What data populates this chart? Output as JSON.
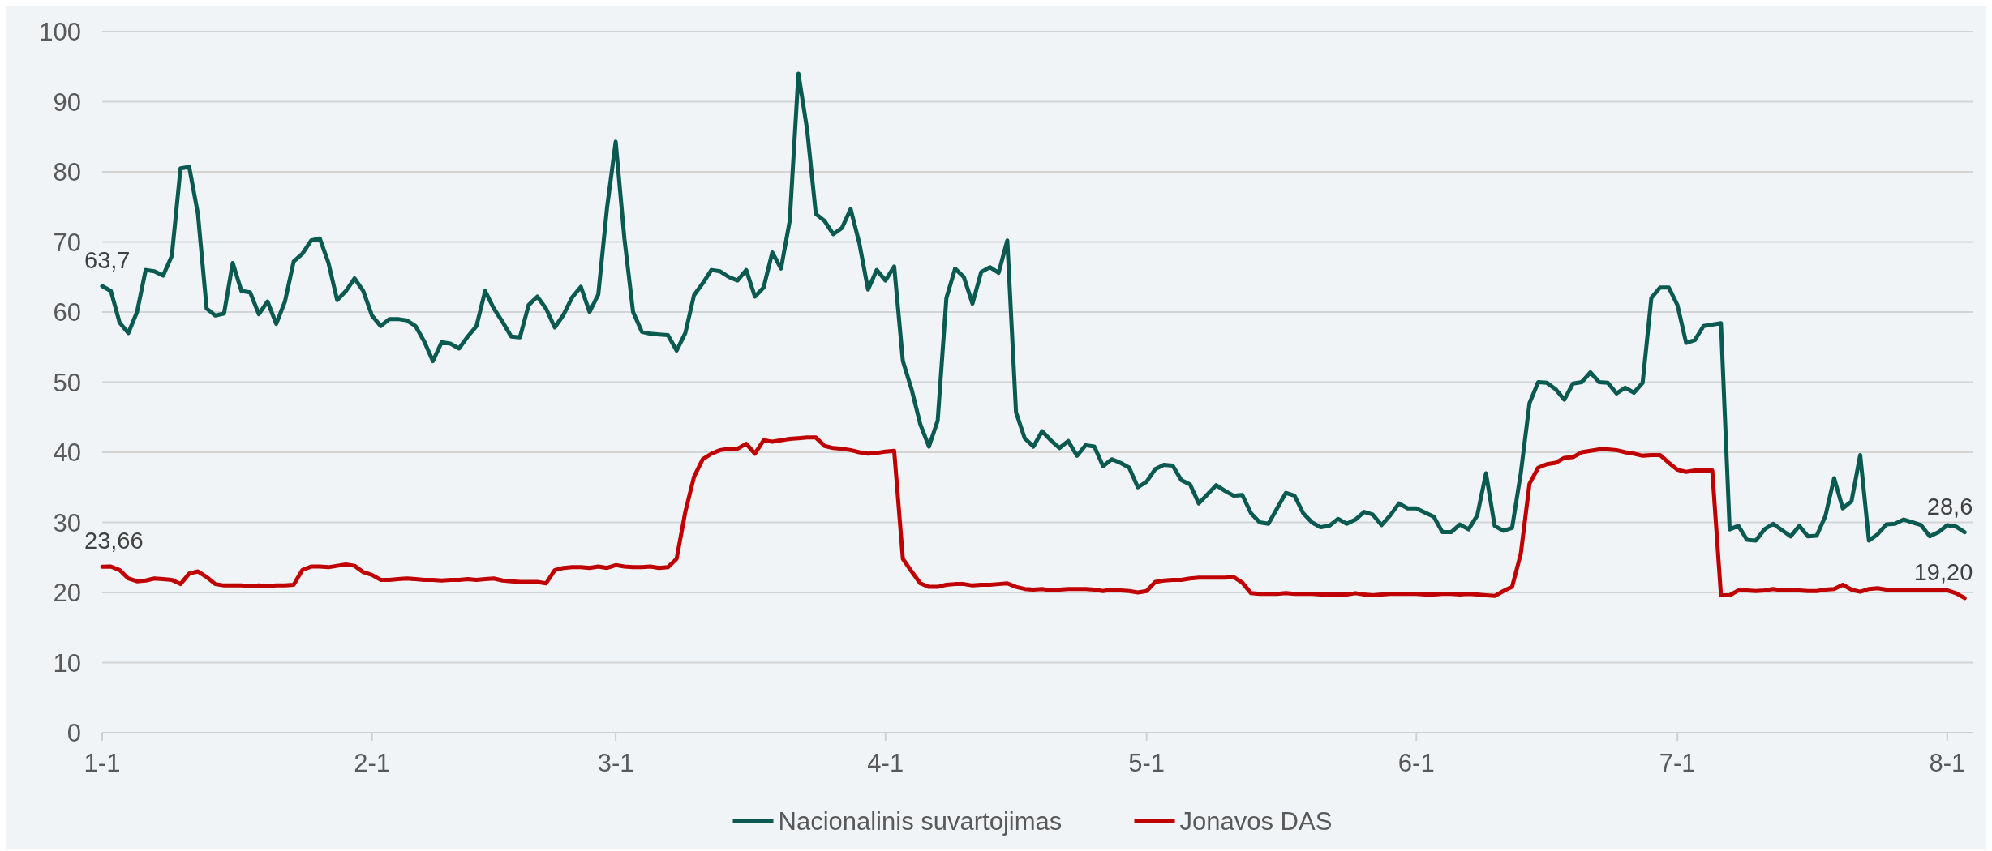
{
  "chart_data": {
    "type": "line",
    "x": [
      "--01-01",
      "--01-02",
      "--01-03",
      "--01-04",
      "--01-05",
      "--01-06",
      "--01-07",
      "--01-08",
      "--01-09",
      "--01-10",
      "--01-11",
      "--01-12",
      "--01-13",
      "--01-14",
      "--01-15",
      "--01-16",
      "--01-17",
      "--01-18",
      "--01-19",
      "--01-20",
      "--01-21",
      "--01-22",
      "--01-23",
      "--01-24",
      "--01-25",
      "--01-26",
      "--01-27",
      "--01-28",
      "--01-29",
      "--01-30",
      "--01-31",
      "--02-01",
      "--02-02",
      "--02-03",
      "--02-04",
      "--02-05",
      "--02-06",
      "--02-07",
      "--02-08",
      "--02-09",
      "--02-10",
      "--02-11",
      "--02-12",
      "--02-13",
      "--02-14",
      "--02-15",
      "--02-16",
      "--02-17",
      "--02-18",
      "--02-19",
      "--02-20",
      "--02-21",
      "--02-22",
      "--02-23",
      "--02-24",
      "--02-25",
      "--02-26",
      "--02-27",
      "--02-28",
      "--03-01",
      "--03-02",
      "--03-03",
      "--03-04",
      "--03-05",
      "--03-06",
      "--03-07",
      "--03-08",
      "--03-09",
      "--03-10",
      "--03-11",
      "--03-12",
      "--03-13",
      "--03-14",
      "--03-15",
      "--03-16",
      "--03-17",
      "--03-18",
      "--03-19",
      "--03-20",
      "--03-21",
      "--03-22",
      "--03-23",
      "--03-24",
      "--03-25",
      "--03-26",
      "--03-27",
      "--03-28",
      "--03-29",
      "--03-30",
      "--03-31",
      "--04-01",
      "--04-02",
      "--04-03",
      "--04-04",
      "--04-05",
      "--04-06",
      "--04-07",
      "--04-08",
      "--04-09",
      "--04-10",
      "--04-11",
      "--04-12",
      "--04-13",
      "--04-14",
      "--04-15",
      "--04-16",
      "--04-17",
      "--04-18",
      "--04-19",
      "--04-20",
      "--04-21",
      "--04-22",
      "--04-23",
      "--04-24",
      "--04-25",
      "--04-26",
      "--04-27",
      "--04-28",
      "--04-29",
      "--04-30",
      "--05-01",
      "--05-02",
      "--05-03",
      "--05-04",
      "--05-05",
      "--05-06",
      "--05-07",
      "--05-08",
      "--05-09",
      "--05-10",
      "--05-11",
      "--05-12",
      "--05-13",
      "--05-14",
      "--05-15",
      "--05-16",
      "--05-17",
      "--05-18",
      "--05-19",
      "--05-20",
      "--05-21",
      "--05-22",
      "--05-23",
      "--05-24",
      "--05-25",
      "--05-26",
      "--05-27",
      "--05-28",
      "--05-29",
      "--05-30",
      "--05-31",
      "--06-01",
      "--06-02",
      "--06-03",
      "--06-04",
      "--06-05",
      "--06-06",
      "--06-07",
      "--06-08",
      "--06-09",
      "--06-10",
      "--06-11",
      "--06-12",
      "--06-13",
      "--06-14",
      "--06-15",
      "--06-16",
      "--06-17",
      "--06-18",
      "--06-19",
      "--06-20",
      "--06-21",
      "--06-22",
      "--06-23",
      "--06-24",
      "--06-25",
      "--06-26",
      "--06-27",
      "--06-28",
      "--06-29",
      "--06-30",
      "--07-01",
      "--07-02",
      "--07-03",
      "--07-04",
      "--07-05",
      "--07-06",
      "--07-07",
      "--07-08",
      "--07-09",
      "--07-10",
      "--07-11",
      "--07-12",
      "--07-13",
      "--07-14",
      "--07-15",
      "--07-16",
      "--07-17",
      "--07-18",
      "--07-19",
      "--07-20",
      "--07-21",
      "--07-22",
      "--07-23",
      "--07-24",
      "--07-25",
      "--07-26",
      "--07-27",
      "--07-28",
      "--07-29",
      "--07-30",
      "--07-31",
      "--08-01",
      "--08-02",
      "--08-03"
    ],
    "series": [
      {
        "name": "Nacionalinis suvartojimas",
        "color": "#0b5a52",
        "values": [
          63.7,
          63,
          58.5,
          57,
          60,
          66,
          65.8,
          65.2,
          68,
          80.5,
          80.7,
          74,
          60.5,
          59.5,
          59.8,
          67,
          63,
          62.8,
          59.7,
          61.5,
          58.3,
          61.5,
          67.2,
          68.3,
          70.2,
          70.5,
          67,
          61.7,
          63,
          64.8,
          63,
          59.5,
          58,
          59,
          59,
          58.8,
          58,
          55.8,
          53,
          55.7,
          55.5,
          54.8,
          56.5,
          58,
          63,
          60.5,
          58.6,
          56.5,
          56.4,
          61,
          62.2,
          60.5,
          57.8,
          59.6,
          62.1,
          63.6,
          60,
          62.5,
          74.8,
          84.3,
          70.5,
          60,
          57.2,
          56.9,
          56.8,
          56.7,
          54.5,
          57,
          62.4,
          64.1,
          66,
          65.8,
          65,
          64.5,
          66,
          62.2,
          63.5,
          68.5,
          66.2,
          73,
          94,
          86,
          74,
          73,
          71.1,
          72,
          74.7,
          69.8,
          63.2,
          66,
          64.5,
          66.5,
          53,
          49,
          44,
          40.8,
          44.5,
          62,
          66.2,
          65,
          61.2,
          65.7,
          66.4,
          65.6,
          70.2,
          45.7,
          42,
          40.8,
          43,
          41.7,
          40.6,
          41.6,
          39.5,
          41,
          40.8,
          38,
          39,
          38.5,
          37.8,
          35,
          35.8,
          37.6,
          38.2,
          38.1,
          36,
          35.4,
          32.7,
          34,
          35.3,
          34.5,
          33.8,
          33.9,
          31.3,
          30,
          29.8,
          32,
          34.2,
          33.8,
          31.3,
          30,
          29.3,
          29.5,
          30.5,
          29.8,
          30.4,
          31.5,
          31.1,
          29.6,
          31,
          32.7,
          32,
          32,
          31.4,
          30.8,
          28.6,
          28.6,
          29.7,
          29,
          31,
          37,
          29.5,
          28.8,
          29.2,
          37,
          47,
          50,
          49.9,
          49,
          47.5,
          49.8,
          50,
          51.4,
          50,
          49.9,
          48.4,
          49.2,
          48.5,
          49.9,
          62,
          63.5,
          63.5,
          61,
          55.6,
          56,
          58,
          58.2,
          58.4,
          29,
          29.5,
          27.5,
          27.4,
          29,
          29.8,
          28.9,
          28,
          29.5,
          28,
          28.1,
          30.9,
          36.3,
          32,
          33,
          39.6,
          27.4,
          28.3,
          29.7,
          29.8,
          30.4,
          30,
          29.6,
          28,
          28.6,
          29.6,
          29.4,
          28.6
        ]
      },
      {
        "name": "Jonavos DAS",
        "color": "#c00000",
        "values": [
          23.66,
          23.7,
          23.2,
          22,
          21.6,
          21.7,
          22,
          21.9,
          21.8,
          21.2,
          22.7,
          23,
          22.2,
          21.2,
          21,
          21,
          21,
          20.9,
          21,
          20.9,
          21,
          21,
          21.1,
          23.2,
          23.7,
          23.7,
          23.6,
          23.8,
          24,
          23.8,
          22.9,
          22.5,
          21.8,
          21.8,
          21.9,
          22,
          21.9,
          21.8,
          21.8,
          21.7,
          21.8,
          21.8,
          21.9,
          21.8,
          21.9,
          22,
          21.7,
          21.6,
          21.5,
          21.5,
          21.5,
          21.3,
          23.2,
          23.5,
          23.6,
          23.6,
          23.5,
          23.7,
          23.5,
          23.9,
          23.7,
          23.6,
          23.6,
          23.7,
          23.5,
          23.6,
          24.8,
          31.5,
          36.5,
          39,
          39.8,
          40.3,
          40.5,
          40.5,
          41.2,
          39.8,
          41.7,
          41.5,
          41.7,
          41.9,
          42,
          42.1,
          42.1,
          40.9,
          40.6,
          40.5,
          40.3,
          40,
          39.8,
          39.9,
          40.1,
          40.2,
          24.8,
          23,
          21.3,
          20.8,
          20.8,
          21.1,
          21.2,
          21.2,
          21,
          21.1,
          21.1,
          21.2,
          21.3,
          20.8,
          20.5,
          20.4,
          20.5,
          20.3,
          20.4,
          20.5,
          20.5,
          20.5,
          20.4,
          20.2,
          20.4,
          20.3,
          20.2,
          20,
          20.2,
          21.5,
          21.7,
          21.8,
          21.8,
          22,
          22.1,
          22.1,
          22.1,
          22.1,
          22.2,
          21.4,
          19.9,
          19.8,
          19.8,
          19.8,
          19.9,
          19.8,
          19.8,
          19.8,
          19.7,
          19.7,
          19.7,
          19.7,
          19.9,
          19.7,
          19.6,
          19.7,
          19.8,
          19.8,
          19.8,
          19.8,
          19.7,
          19.7,
          19.8,
          19.8,
          19.7,
          19.8,
          19.7,
          19.6,
          19.5,
          20.2,
          20.8,
          25.5,
          35.5,
          37.8,
          38.3,
          38.5,
          39.2,
          39.3,
          40,
          40.2,
          40.4,
          40.4,
          40.3,
          40,
          39.8,
          39.5,
          39.6,
          39.6,
          38.5,
          37.5,
          37.2,
          37.4,
          37.4,
          37.4,
          19.6,
          19.6,
          20.3,
          20.3,
          20.2,
          20.3,
          20.5,
          20.3,
          20.4,
          20.3,
          20.2,
          20.2,
          20.4,
          20.5,
          21.1,
          20.4,
          20.1,
          20.5,
          20.6,
          20.4,
          20.3,
          20.4,
          20.4,
          20.4,
          20.3,
          20.4,
          20.3,
          19.9,
          19.2
        ]
      }
    ],
    "annotations": [
      {
        "text": "63,7",
        "x": "--01-01",
        "y": 63.7
      },
      {
        "text": "23,66",
        "x": "--01-01",
        "y": 23.66
      },
      {
        "text": "28,6",
        "x": "--08-03",
        "y": 28.6
      },
      {
        "text": "19,20",
        "x": "--08-03",
        "y": 19.2
      }
    ],
    "xlim": [
      "--01-01",
      "--08-04"
    ],
    "xticks": [
      {
        "value": "--01-01",
        "label": "1-1"
      },
      {
        "value": "--02-01",
        "label": "2-1"
      },
      {
        "value": "--03-01",
        "label": "3-1"
      },
      {
        "value": "--04-01",
        "label": "4-1"
      },
      {
        "value": "--05-01",
        "label": "5-1"
      },
      {
        "value": "--06-01",
        "label": "6-1"
      },
      {
        "value": "--07-01",
        "label": "7-1"
      },
      {
        "value": "--08-01",
        "label": "8-1"
      }
    ],
    "ylim": [
      0,
      100
    ],
    "yticks": [
      0,
      10,
      20,
      30,
      40,
      50,
      60,
      70,
      80,
      90,
      100
    ],
    "grid": "y",
    "legend": "bottom",
    "marker": "none",
    "line_style": "solid"
  }
}
